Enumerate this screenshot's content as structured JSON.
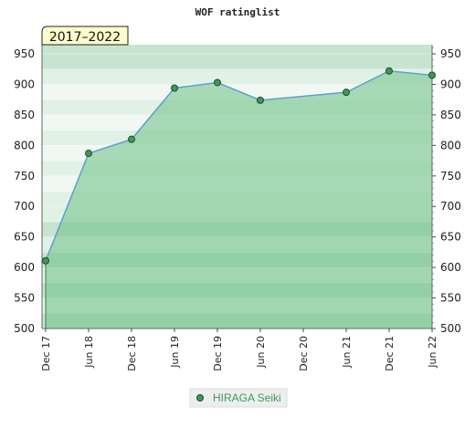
{
  "chart_data": {
    "type": "area",
    "title": "WOF ratinglist",
    "period": "2017–2022",
    "xlabel": "",
    "ylabel": "",
    "x_tick_labels": [
      "Dec 17",
      "Jun 18",
      "Dec 18",
      "Jun 19",
      "Dec 19",
      "Jun 20",
      "Dec 20",
      "Jun 21",
      "Dec 21",
      "Jun 22"
    ],
    "y_ticks": [
      500,
      550,
      600,
      650,
      700,
      750,
      800,
      850,
      900,
      950
    ],
    "ylim": [
      500,
      965
    ],
    "grid": true,
    "legend_placement": "bottom-center",
    "series": [
      {
        "name": "HIRAGA Seiki",
        "points": [
          {
            "x": "Dec 17",
            "y": 611
          },
          {
            "x": "Jun 18",
            "y": 787
          },
          {
            "x": "Dec 18",
            "y": 810
          },
          {
            "x": "Jun 19",
            "y": 894
          },
          {
            "x": "Dec 19",
            "y": 903
          },
          {
            "x": "Jun 20",
            "y": 874
          },
          {
            "x": "Jun 21",
            "y": 887
          },
          {
            "x": "Dec 21",
            "y": 922
          },
          {
            "x": "Jun 22",
            "y": 915
          }
        ]
      }
    ],
    "colors": {
      "line": "#5b9fd0",
      "fill": "#6cbf84",
      "marker": "#3d9a55",
      "legend_text": "#3d9a55",
      "period_bg": "#fffccc",
      "band_dark": "#c6e4cf",
      "band_light": "#e2f1e6",
      "band_white": "#f1f8f3"
    }
  }
}
